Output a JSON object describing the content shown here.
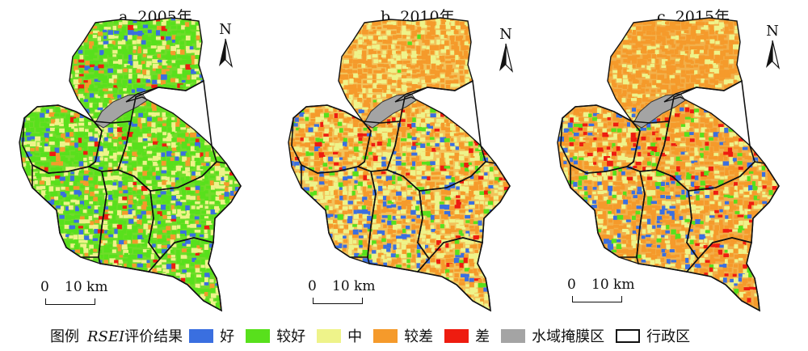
{
  "panels": [
    {
      "title": "a. 2005年",
      "north": "N",
      "scale_zero": "0",
      "scale_label": "10 km",
      "year": 2005,
      "dominant_classes": [
        "较好",
        "中"
      ]
    },
    {
      "title": "b. 2010年",
      "north": "N",
      "scale_zero": "0",
      "scale_label": "10 km",
      "year": 2010,
      "dominant_classes": [
        "中",
        "较差",
        "好"
      ]
    },
    {
      "title": "c. 2015年",
      "north": "N",
      "scale_zero": "0",
      "scale_label": "10 km",
      "year": 2015,
      "dominant_classes": [
        "较差",
        "中",
        "好"
      ]
    }
  ],
  "legend": {
    "title": "图例",
    "subtitle_italic": "RSEI",
    "subtitle_rest": "评价结果",
    "items": [
      {
        "label": "好",
        "color": "#3a6fe0"
      },
      {
        "label": "较好",
        "color": "#58e01c"
      },
      {
        "label": "中",
        "color": "#eef38a"
      },
      {
        "label": "较差",
        "color": "#f59a2b"
      },
      {
        "label": "差",
        "color": "#ee1c10"
      },
      {
        "label": "水域掩膜区",
        "color": "#a4a4a4"
      },
      {
        "label": "行政区",
        "color": "#ffffff",
        "outline": true
      }
    ]
  }
}
